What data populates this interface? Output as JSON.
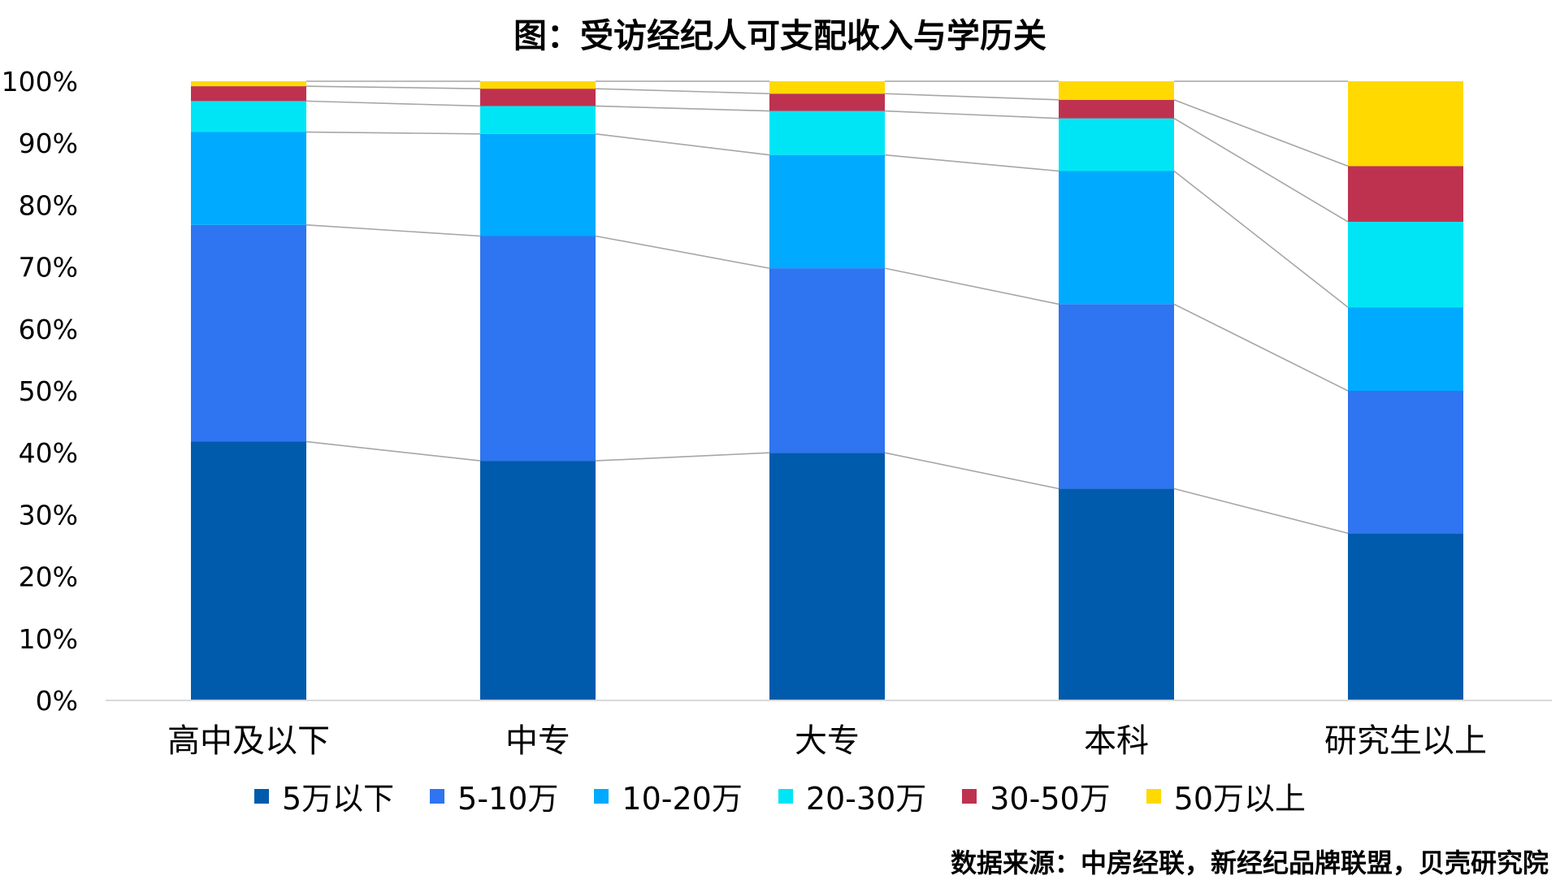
{
  "chart_data": {
    "type": "bar",
    "stacked": true,
    "percent_stacked": true,
    "title": "图：受访经纪人可支配收入与学历关",
    "categories": [
      "高中及以下",
      "中专",
      "大专",
      "本科",
      "研究生以上"
    ],
    "series": [
      {
        "name": "5万以下",
        "color": "#005BAC",
        "values": [
          41.8,
          38.7,
          40.0,
          34.2,
          27.0
        ]
      },
      {
        "name": "5-10万",
        "color": "#2F74F0",
        "values": [
          35.0,
          36.3,
          29.8,
          29.8,
          23.0
        ]
      },
      {
        "name": "10-20万",
        "color": "#00AAFF",
        "values": [
          15.0,
          16.5,
          18.3,
          21.5,
          13.5
        ]
      },
      {
        "name": "20-30万",
        "color": "#00E5F6",
        "values": [
          5.0,
          4.5,
          7.1,
          8.5,
          13.8
        ]
      },
      {
        "name": "30-50万",
        "color": "#BE3250",
        "values": [
          2.4,
          2.8,
          2.8,
          3.0,
          9.0
        ]
      },
      {
        "name": "50万以上",
        "color": "#FFD900",
        "values": [
          0.8,
          1.2,
          2.0,
          3.0,
          13.7
        ]
      }
    ],
    "ylim": [
      0,
      100
    ],
    "y_ticks": [
      "0%",
      "10%",
      "20%",
      "30%",
      "40%",
      "50%",
      "60%",
      "70%",
      "80%",
      "90%",
      "100%"
    ],
    "series_lines": true,
    "grid": false,
    "legend_position": "bottom"
  },
  "source": "数据来源：中房经联，新经纪品牌联盟，贝壳研究院"
}
